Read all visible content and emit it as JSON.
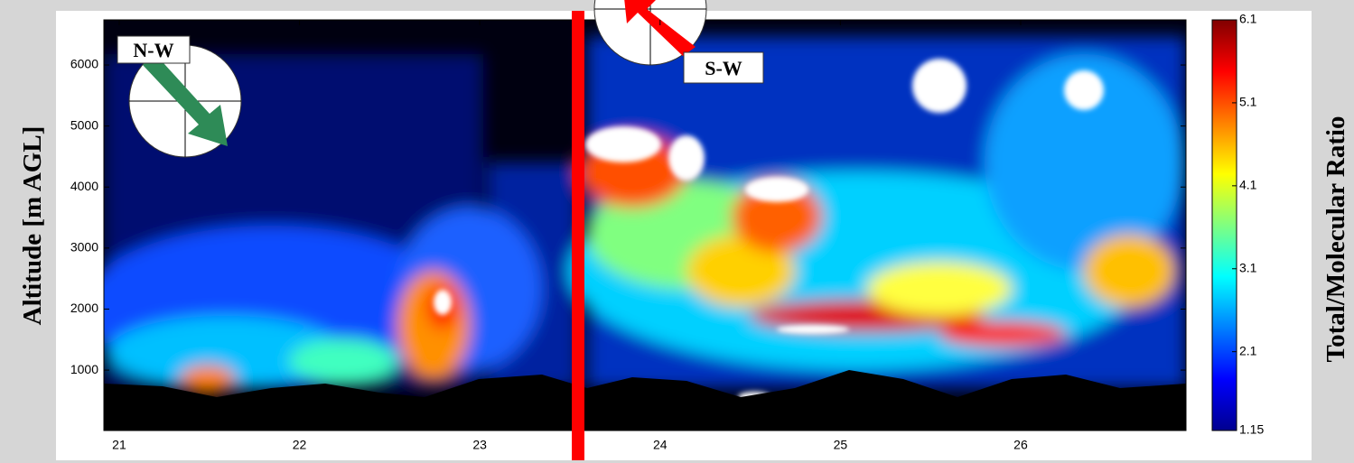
{
  "chart_data": {
    "type": "heatmap",
    "ylabel": "Altitude [m AGL]",
    "colorbar_label": "Total/Molecular Ratio",
    "xlim": [
      20.915,
      26.917
    ],
    "xticks": [
      21,
      22,
      23,
      24,
      25,
      26
    ],
    "ylim": [
      10,
      6740
    ],
    "yticks": [
      1000,
      2000,
      3000,
      4000,
      5000,
      6000
    ],
    "clim": [
      1.15,
      6.1
    ],
    "cticks": [
      1.15,
      2.1,
      3.1,
      4.1,
      5.1,
      6.1
    ],
    "colormap": [
      "#00008f",
      "#0000ff",
      "#0080ff",
      "#00ffff",
      "#80ff80",
      "#ffff00",
      "#ff8000",
      "#ff0000",
      "#800000"
    ],
    "annotations": [
      "N-W",
      "S-W"
    ]
  }
}
